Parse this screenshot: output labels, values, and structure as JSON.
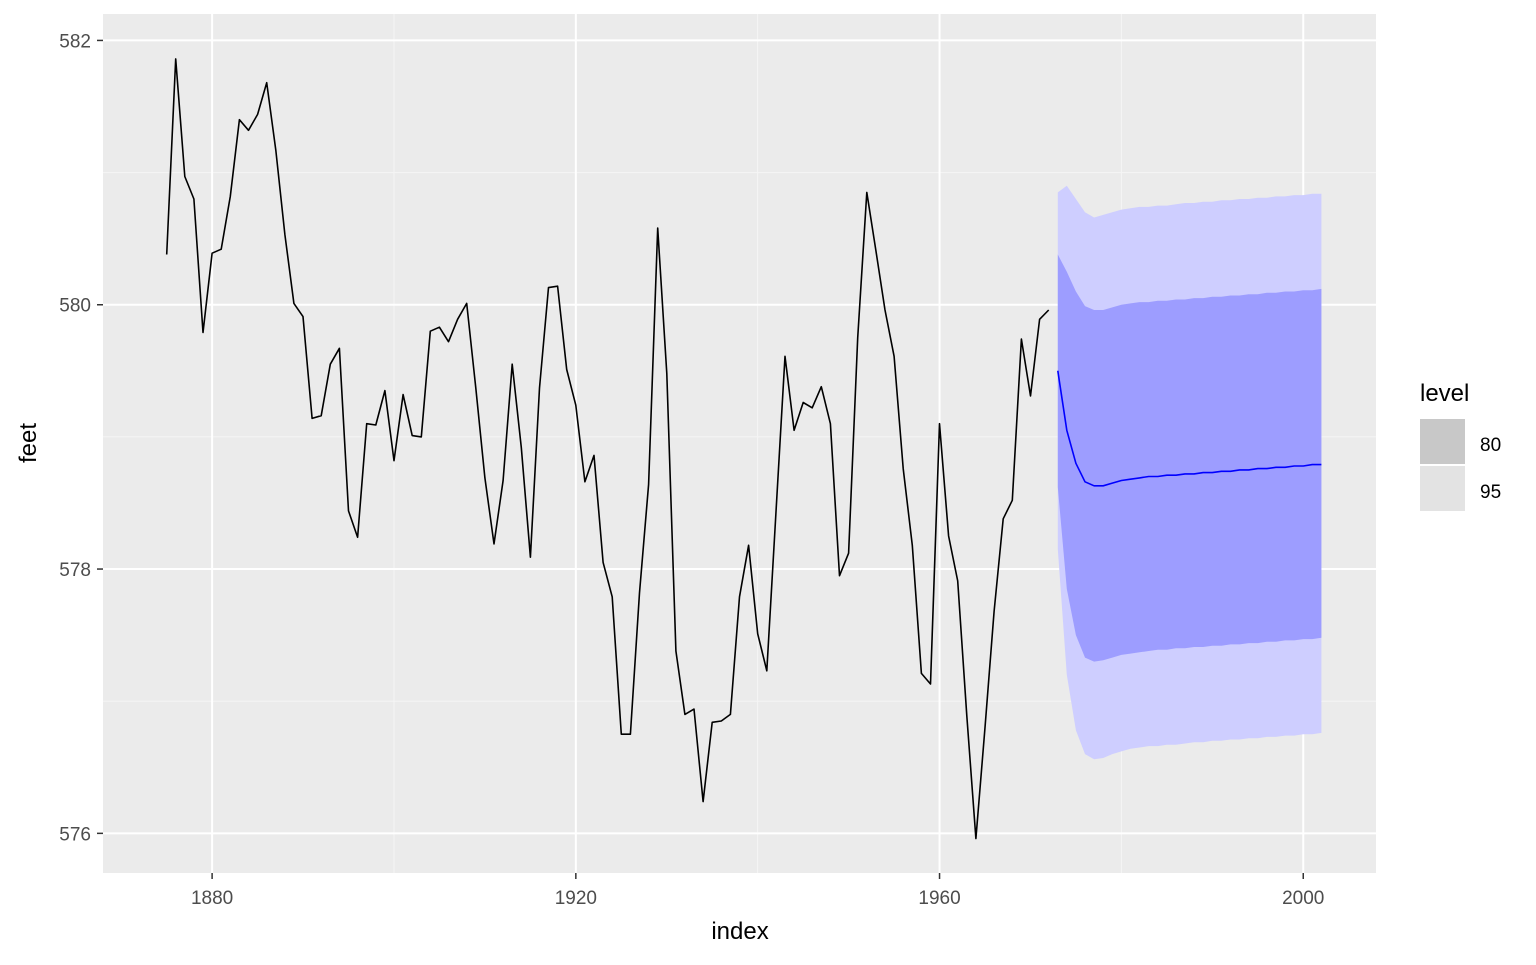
{
  "colors": {
    "panel_background": "#EBEBEB",
    "grid_major": "#FFFFFF",
    "grid_minor": "#F5F5F5",
    "observed_line": "#000000",
    "forecast_line": "#0000FF",
    "band_80": "#9D9DFF",
    "band_95": "#CECEFF",
    "legend_key_80": "#C8C8C8",
    "legend_key_95": "#E3E3E3"
  },
  "chart_data": {
    "type": "line",
    "xlabel": "index",
    "ylabel": "feet",
    "xlim": [
      1868,
      2008
    ],
    "ylim": [
      575.7,
      582.2
    ],
    "x_ticks": [
      1880,
      1920,
      1960,
      2000
    ],
    "x_tick_labels": [
      "1880",
      "1920",
      "1960",
      "2000"
    ],
    "y_ticks": [
      576,
      578,
      580,
      582
    ],
    "y_tick_labels": [
      "576",
      "578",
      "580",
      "582"
    ],
    "grid": true,
    "legend": {
      "title": "level",
      "position": "right",
      "entries": [
        {
          "label": "80"
        },
        {
          "label": "95"
        }
      ]
    },
    "observed": {
      "x": [
        1875,
        1876,
        1877,
        1878,
        1879,
        1880,
        1881,
        1882,
        1883,
        1884,
        1885,
        1886,
        1887,
        1888,
        1889,
        1890,
        1891,
        1892,
        1893,
        1894,
        1895,
        1896,
        1897,
        1898,
        1899,
        1900,
        1901,
        1902,
        1903,
        1904,
        1905,
        1906,
        1907,
        1908,
        1909,
        1910,
        1911,
        1912,
        1913,
        1914,
        1915,
        1916,
        1917,
        1918,
        1919,
        1920,
        1921,
        1922,
        1923,
        1924,
        1925,
        1926,
        1927,
        1928,
        1929,
        1930,
        1931,
        1932,
        1933,
        1934,
        1935,
        1936,
        1937,
        1938,
        1939,
        1940,
        1941,
        1942,
        1943,
        1944,
        1945,
        1946,
        1947,
        1948,
        1949,
        1950,
        1951,
        1952,
        1953,
        1954,
        1955,
        1956,
        1957,
        1958,
        1959,
        1960,
        1961,
        1962,
        1963,
        1964,
        1965,
        1966,
        1967,
        1968,
        1969,
        1970,
        1971,
        1972
      ],
      "y": [
        580.38,
        581.86,
        580.97,
        580.8,
        579.79,
        580.39,
        580.42,
        580.82,
        581.4,
        581.32,
        581.44,
        581.68,
        581.17,
        580.53,
        580.01,
        579.91,
        579.14,
        579.16,
        579.55,
        579.67,
        578.44,
        578.24,
        579.1,
        579.09,
        579.35,
        578.82,
        579.32,
        579.01,
        579.0,
        579.8,
        579.83,
        579.72,
        579.89,
        580.01,
        579.37,
        578.69,
        578.19,
        578.67,
        579.55,
        578.92,
        578.09,
        579.37,
        580.13,
        580.14,
        579.51,
        579.24,
        578.66,
        578.86,
        578.05,
        577.79,
        576.75,
        576.75,
        577.82,
        578.64,
        580.58,
        579.48,
        577.38,
        576.9,
        576.94,
        576.24,
        576.84,
        576.85,
        576.9,
        577.79,
        578.18,
        577.51,
        577.23,
        578.42,
        579.61,
        579.05,
        579.26,
        579.22,
        579.38,
        579.1,
        577.95,
        578.12,
        579.75,
        580.85,
        580.41,
        579.96,
        579.61,
        578.76,
        578.18,
        577.21,
        577.13,
        579.1,
        578.25,
        577.91,
        576.89,
        575.96,
        576.8,
        577.68,
        578.38,
        578.52,
        579.74,
        579.31,
        579.89,
        579.96
      ]
    },
    "forecast": {
      "x": [
        1973,
        1974,
        1975,
        1976,
        1977,
        1978,
        1979,
        1980,
        1981,
        1982,
        1983,
        1984,
        1985,
        1986,
        1987,
        1988,
        1989,
        1990,
        1991,
        1992,
        1993,
        1994,
        1995,
        1996,
        1997,
        1998,
        1999,
        2000,
        2001,
        2002
      ],
      "mean": [
        579.5,
        579.05,
        578.8,
        578.66,
        578.63,
        578.63,
        578.65,
        578.67,
        578.68,
        578.69,
        578.7,
        578.7,
        578.71,
        578.71,
        578.72,
        578.72,
        578.73,
        578.73,
        578.74,
        578.74,
        578.75,
        578.75,
        578.76,
        578.76,
        578.77,
        578.77,
        578.78,
        578.78,
        578.79,
        578.79
      ],
      "lo80": [
        578.62,
        577.85,
        577.5,
        577.33,
        577.3,
        577.31,
        577.33,
        577.35,
        577.36,
        577.37,
        577.38,
        577.39,
        577.39,
        577.4,
        577.4,
        577.41,
        577.41,
        577.42,
        577.42,
        577.43,
        577.43,
        577.44,
        577.44,
        577.45,
        577.45,
        577.46,
        577.46,
        577.47,
        577.47,
        577.48
      ],
      "hi80": [
        580.38,
        580.25,
        580.1,
        579.99,
        579.96,
        579.96,
        579.98,
        580.0,
        580.01,
        580.02,
        580.02,
        580.03,
        580.03,
        580.04,
        580.04,
        580.05,
        580.05,
        580.06,
        580.06,
        580.07,
        580.07,
        580.08,
        580.08,
        580.09,
        580.09,
        580.1,
        580.1,
        580.11,
        580.11,
        580.12
      ],
      "lo95": [
        578.15,
        577.2,
        576.78,
        576.6,
        576.56,
        576.57,
        576.6,
        576.62,
        576.64,
        576.65,
        576.66,
        576.66,
        576.67,
        576.67,
        576.68,
        576.69,
        576.69,
        576.7,
        576.7,
        576.71,
        576.71,
        576.72,
        576.72,
        576.73,
        576.73,
        576.74,
        576.74,
        576.75,
        576.75,
        576.76
      ],
      "hi95": [
        580.85,
        580.9,
        580.8,
        580.7,
        580.66,
        580.68,
        580.7,
        580.72,
        580.73,
        580.74,
        580.74,
        580.75,
        580.75,
        580.76,
        580.77,
        580.77,
        580.78,
        580.78,
        580.79,
        580.79,
        580.8,
        580.8,
        580.81,
        580.81,
        580.82,
        580.82,
        580.83,
        580.83,
        580.84,
        580.84
      ]
    }
  }
}
